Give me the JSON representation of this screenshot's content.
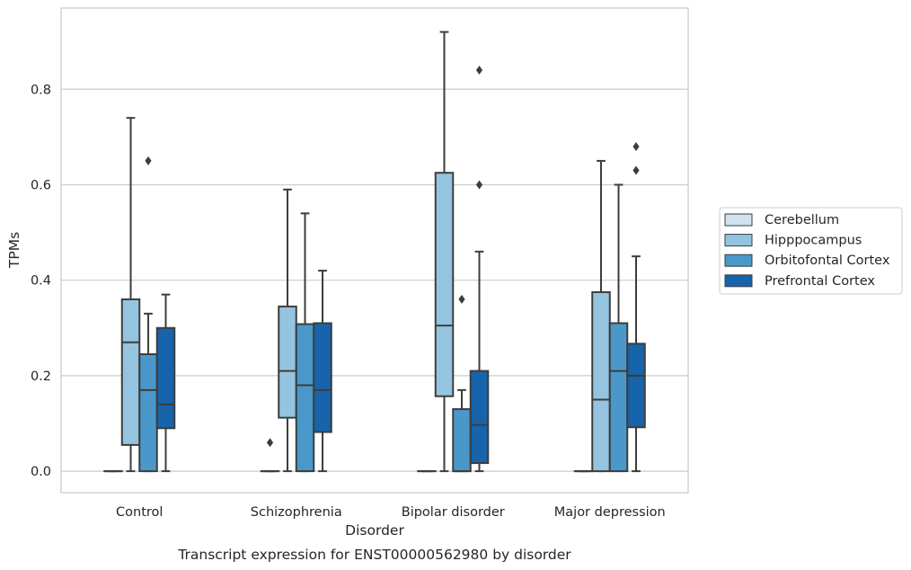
{
  "chart_data": {
    "type": "box",
    "xlabel": "Disorder",
    "ylabel": "TPMs",
    "caption": "Transcript expression for ENST00000562980 by disorder",
    "categories": [
      "Control",
      "Schizophrenia",
      "Bipolar disorder",
      "Major depression"
    ],
    "ylim": [
      -0.045,
      0.97
    ],
    "yticks": [
      0.0,
      0.2,
      0.4,
      0.6,
      0.8
    ],
    "ytick_labels": [
      "0.0",
      "0.2",
      "0.4",
      "0.6",
      "0.8"
    ],
    "grid": "horizontal",
    "legend_position": "right",
    "series": [
      {
        "name": "Cerebellum",
        "color": "#d0e1f2",
        "boxes": [
          {
            "q1": 0.0,
            "median": 0.0,
            "q3": 0.0,
            "whisker_low": 0.0,
            "whisker_high": 0.0,
            "outliers": []
          },
          {
            "q1": 0.0,
            "median": 0.0,
            "q3": 0.0,
            "whisker_low": 0.0,
            "whisker_high": 0.0,
            "outliers": [
              0.06
            ]
          },
          {
            "q1": 0.0,
            "median": 0.0,
            "q3": 0.0,
            "whisker_low": 0.0,
            "whisker_high": 0.0,
            "outliers": []
          },
          {
            "q1": 0.0,
            "median": 0.0,
            "q3": 0.0,
            "whisker_low": 0.0,
            "whisker_high": 0.0,
            "outliers": []
          }
        ]
      },
      {
        "name": "Hipppocampus",
        "color": "#94c4df",
        "boxes": [
          {
            "q1": 0.055,
            "median": 0.27,
            "q3": 0.36,
            "whisker_low": 0.0,
            "whisker_high": 0.74,
            "outliers": []
          },
          {
            "q1": 0.112,
            "median": 0.21,
            "q3": 0.345,
            "whisker_low": 0.0,
            "whisker_high": 0.59,
            "outliers": []
          },
          {
            "q1": 0.157,
            "median": 0.305,
            "q3": 0.625,
            "whisker_low": 0.0,
            "whisker_high": 0.92,
            "outliers": []
          },
          {
            "q1": 0.0,
            "median": 0.15,
            "q3": 0.375,
            "whisker_low": 0.0,
            "whisker_high": 0.65,
            "outliers": []
          }
        ]
      },
      {
        "name": "Orbitofontal Cortex",
        "color": "#4a98c9",
        "boxes": [
          {
            "q1": 0.0,
            "median": 0.17,
            "q3": 0.245,
            "whisker_low": 0.0,
            "whisker_high": 0.33,
            "outliers": [
              0.65
            ]
          },
          {
            "q1": 0.0,
            "median": 0.18,
            "q3": 0.308,
            "whisker_low": 0.0,
            "whisker_high": 0.54,
            "outliers": []
          },
          {
            "q1": 0.0,
            "median": 0.0,
            "q3": 0.13,
            "whisker_low": 0.0,
            "whisker_high": 0.17,
            "outliers": [
              0.36
            ]
          },
          {
            "q1": 0.0,
            "median": 0.21,
            "q3": 0.31,
            "whisker_low": 0.0,
            "whisker_high": 0.6,
            "outliers": []
          }
        ]
      },
      {
        "name": "Prefrontal Cortex",
        "color": "#1764ab",
        "boxes": [
          {
            "q1": 0.09,
            "median": 0.14,
            "q3": 0.3,
            "whisker_low": 0.0,
            "whisker_high": 0.37,
            "outliers": []
          },
          {
            "q1": 0.082,
            "median": 0.17,
            "q3": 0.31,
            "whisker_low": 0.0,
            "whisker_high": 0.42,
            "outliers": []
          },
          {
            "q1": 0.017,
            "median": 0.097,
            "q3": 0.21,
            "whisker_low": 0.0,
            "whisker_high": 0.46,
            "outliers": [
              0.6,
              0.84
            ]
          },
          {
            "q1": 0.092,
            "median": 0.2,
            "q3": 0.267,
            "whisker_low": 0.0,
            "whisker_high": 0.45,
            "outliers": [
              0.63,
              0.68
            ]
          }
        ]
      }
    ]
  }
}
